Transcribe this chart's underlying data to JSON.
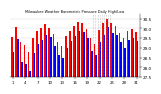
{
  "title": "Milwaukee Weather Barometric Pressure Daily High/Low",
  "ylim": [
    27.5,
    30.75
  ],
  "yticks": [
    27.5,
    28.0,
    28.5,
    29.0,
    29.5,
    30.0,
    30.5
  ],
  "bar_width": 0.38,
  "high_color": "#FF0000",
  "low_color": "#0000FF",
  "background_color": "#FFFFFF",
  "highs": [
    29.55,
    30.05,
    29.3,
    29.15,
    28.8,
    29.5,
    29.85,
    30.0,
    30.2,
    30.0,
    29.7,
    29.3,
    29.1,
    29.6,
    29.85,
    30.1,
    30.35,
    30.25,
    29.95,
    29.5,
    29.2,
    29.9,
    30.25,
    30.5,
    30.3,
    30.1,
    29.75,
    29.5,
    29.85,
    29.95,
    29.8
  ],
  "lows": [
    28.8,
    29.45,
    28.3,
    28.2,
    27.8,
    28.75,
    29.2,
    29.4,
    29.65,
    29.55,
    29.1,
    28.65,
    28.5,
    29.0,
    29.35,
    29.6,
    29.85,
    29.8,
    29.5,
    28.85,
    28.65,
    29.3,
    29.65,
    30.05,
    29.75,
    29.65,
    29.3,
    29.0,
    29.4,
    29.5,
    29.35
  ],
  "n_bars": 31,
  "dashed_region": [
    20,
    23
  ]
}
